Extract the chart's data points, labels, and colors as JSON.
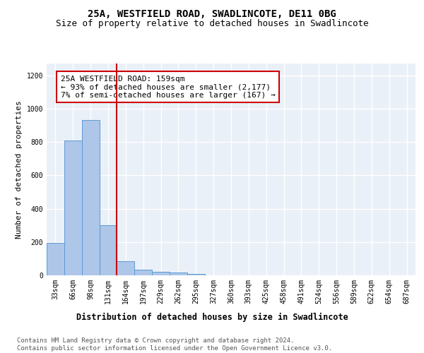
{
  "title": "25A, WESTFIELD ROAD, SWADLINCOTE, DE11 0BG",
  "subtitle": "Size of property relative to detached houses in Swadlincote",
  "xlabel": "Distribution of detached houses by size in Swadlincote",
  "ylabel": "Number of detached properties",
  "categories": [
    "33sqm",
    "66sqm",
    "98sqm",
    "131sqm",
    "164sqm",
    "197sqm",
    "229sqm",
    "262sqm",
    "295sqm",
    "327sqm",
    "360sqm",
    "393sqm",
    "425sqm",
    "458sqm",
    "491sqm",
    "524sqm",
    "556sqm",
    "589sqm",
    "622sqm",
    "654sqm",
    "687sqm"
  ],
  "values": [
    195,
    810,
    930,
    300,
    85,
    35,
    20,
    15,
    10,
    0,
    0,
    0,
    0,
    0,
    0,
    0,
    0,
    0,
    0,
    0,
    0
  ],
  "bar_color": "#aec6e8",
  "bar_edge_color": "#5b9bd5",
  "vline_color": "#cc0000",
  "annotation_text": "25A WESTFIELD ROAD: 159sqm\n← 93% of detached houses are smaller (2,177)\n7% of semi-detached houses are larger (167) →",
  "annotation_box_edge": "#cc0000",
  "ylim": [
    0,
    1270
  ],
  "yticks": [
    0,
    200,
    400,
    600,
    800,
    1000,
    1200
  ],
  "background_color": "#eaf0f8",
  "grid_color": "#ffffff",
  "footer_text": "Contains HM Land Registry data © Crown copyright and database right 2024.\nContains public sector information licensed under the Open Government Licence v3.0.",
  "title_fontsize": 10,
  "subtitle_fontsize": 9,
  "xlabel_fontsize": 8.5,
  "ylabel_fontsize": 8,
  "tick_fontsize": 7,
  "annotation_fontsize": 8,
  "footer_fontsize": 6.5
}
